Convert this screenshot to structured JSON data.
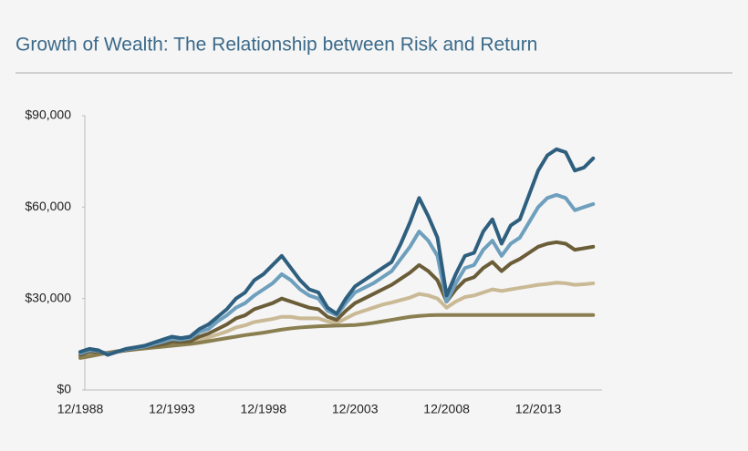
{
  "chart_data": {
    "type": "line",
    "title": "Growth of Wealth: The Relationship between Risk and Return",
    "categories": [
      "12/1988",
      null,
      null,
      null,
      null,
      null,
      null,
      null,
      null,
      null,
      "12/1993",
      null,
      null,
      null,
      null,
      null,
      null,
      null,
      null,
      null,
      "12/1998",
      null,
      null,
      null,
      null,
      null,
      null,
      null,
      null,
      null,
      "12/2003",
      null,
      null,
      null,
      null,
      null,
      null,
      null,
      null,
      null,
      "12/2008",
      null,
      null,
      null,
      null,
      null,
      null,
      null,
      null,
      null,
      "12/2013",
      null,
      null,
      null,
      null,
      null,
      null
    ],
    "series": [
      {
        "color": "#c9b995",
        "values": [
          11000,
          12000,
          12300,
          12200,
          12700,
          13000,
          13400,
          13800,
          14200,
          14600,
          15200,
          15300,
          15600,
          16500,
          17200,
          18200,
          19200,
          20500,
          21200,
          22300,
          22800,
          23300,
          24000,
          24000,
          23500,
          23500,
          23500,
          22500,
          22000,
          23500,
          25000,
          26000,
          27000,
          28000,
          28700,
          29500,
          30300,
          31500,
          31000,
          30000,
          27000,
          29000,
          30500,
          31000,
          32000,
          33000,
          32500,
          33000,
          33500,
          34000,
          34500,
          34800,
          35200,
          35000,
          34500,
          34700,
          35000
        ]
      },
      {
        "color": "#8a7f50",
        "values": [
          10500,
          11000,
          11600,
          12200,
          12700,
          13000,
          13300,
          13600,
          13900,
          14200,
          14500,
          14800,
          15100,
          15500,
          16000,
          16500,
          17000,
          17500,
          18000,
          18400,
          18800,
          19300,
          19800,
          20200,
          20500,
          20700,
          20900,
          21000,
          21100,
          21200,
          21300,
          21600,
          22000,
          22500,
          23000,
          23500,
          24000,
          24300,
          24500,
          24600,
          24600,
          24600,
          24600,
          24600,
          24600,
          24600,
          24600,
          24600,
          24600,
          24600,
          24600,
          24600,
          24600,
          24600,
          24600,
          24600,
          24600
        ]
      },
      {
        "color": "#6b5d38",
        "values": [
          11500,
          12500,
          12500,
          12000,
          12500,
          13000,
          13500,
          14000,
          14500,
          15000,
          15800,
          15800,
          16000,
          17500,
          18500,
          20000,
          21500,
          23500,
          24500,
          26500,
          27500,
          28500,
          30000,
          29000,
          28000,
          27000,
          26500,
          24000,
          23000,
          26000,
          28500,
          30000,
          31500,
          33000,
          34500,
          36500,
          38500,
          41000,
          39000,
          36000,
          29000,
          33000,
          36000,
          37000,
          40000,
          42000,
          39000,
          41500,
          43000,
          45000,
          47000,
          48000,
          48500,
          48000,
          46000,
          46500,
          47000
        ]
      },
      {
        "color": "#6e9fbd",
        "values": [
          12000,
          13000,
          12800,
          11800,
          12500,
          13300,
          13700,
          14200,
          15000,
          15800,
          16700,
          16500,
          17000,
          19000,
          20000,
          22500,
          24500,
          27000,
          28500,
          31000,
          33000,
          35000,
          38000,
          36000,
          33000,
          31000,
          30000,
          26000,
          24500,
          28500,
          32000,
          33500,
          35000,
          37000,
          39000,
          43000,
          47000,
          52000,
          49000,
          44000,
          29000,
          35000,
          40000,
          41000,
          46000,
          49000,
          44000,
          48000,
          50000,
          55000,
          60000,
          63000,
          64000,
          63000,
          59000,
          60000,
          61000
        ]
      },
      {
        "color": "#2f5f7e",
        "values": [
          12500,
          13500,
          13000,
          11500,
          12500,
          13500,
          14000,
          14500,
          15500,
          16500,
          17500,
          17000,
          17500,
          20000,
          21500,
          24000,
          26500,
          30000,
          32000,
          36000,
          38000,
          41000,
          44000,
          40000,
          36000,
          33000,
          32000,
          27000,
          25000,
          30000,
          34000,
          36000,
          38000,
          40000,
          42000,
          48000,
          55000,
          63000,
          57000,
          50000,
          31000,
          38000,
          44000,
          45000,
          52000,
          56000,
          48000,
          54000,
          56000,
          64000,
          72000,
          77000,
          79000,
          78000,
          72000,
          73000,
          76000
        ]
      }
    ],
    "ylim": [
      0,
      90000
    ],
    "yticks": [
      {
        "value": 0,
        "label": "$0"
      },
      {
        "value": 30000,
        "label": "$30,000"
      },
      {
        "value": 60000,
        "label": "$60,000"
      },
      {
        "value": 90000,
        "label": "$90,000"
      }
    ],
    "grid": false
  }
}
